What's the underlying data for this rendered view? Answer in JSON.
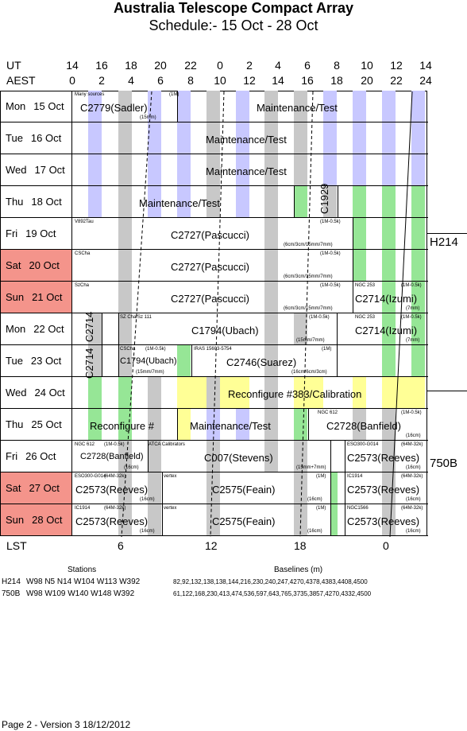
{
  "title": "Australia Telescope Compact Array",
  "subtitle": "Schedule:- 15 Oct - 28 Oct",
  "ut_label": "UT",
  "aest_label": "AEST",
  "ut_ticks": [
    "14",
    "16",
    "18",
    "20",
    "22",
    "0",
    "2",
    "4",
    "6",
    "8",
    "10",
    "12",
    "14"
  ],
  "aest_ticks": [
    "0",
    "2",
    "4",
    "6",
    "8",
    "10",
    "12",
    "14",
    "16",
    "18",
    "20",
    "22",
    "24"
  ],
  "lst_label": "LST",
  "lst_ticks": [
    "6",
    "12",
    "18",
    "0"
  ],
  "days": [
    {
      "name": "Mon",
      "date": "15 Oct",
      "weekend": false
    },
    {
      "name": "Tue",
      "date": "16 Oct",
      "weekend": false
    },
    {
      "name": "Wed",
      "date": "17 Oct",
      "weekend": false
    },
    {
      "name": "Thu",
      "date": "18 Oct",
      "weekend": false
    },
    {
      "name": "Fri",
      "date": "19 Oct",
      "weekend": false
    },
    {
      "name": "Sat",
      "date": "20 Oct",
      "weekend": true
    },
    {
      "name": "Sun",
      "date": "21 Oct",
      "weekend": true
    },
    {
      "name": "Mon",
      "date": "22 Oct",
      "weekend": false
    },
    {
      "name": "Tue",
      "date": "23 Oct",
      "weekend": false
    },
    {
      "name": "Wed",
      "date": "24 Oct",
      "weekend": false
    },
    {
      "name": "Thu",
      "date": "25 Oct",
      "weekend": false
    },
    {
      "name": "Fri",
      "date": "26 Oct",
      "weekend": false
    },
    {
      "name": "Sat",
      "date": "27 Oct",
      "weekend": true
    },
    {
      "name": "Sun",
      "date": "28 Oct",
      "weekend": true
    }
  ],
  "configs": [
    "H214",
    "750B"
  ],
  "projects": {
    "r0": {
      "sources": "Many sources",
      "code": "C2779(Sadler)",
      "band": "(1M)",
      "wave": "(15mm)",
      "main": "Maintenance/Test"
    },
    "r1": {
      "main": "Maintenance/Test"
    },
    "r2": {
      "main": "Maintenance/Test"
    },
    "r3": {
      "main": "Maintenance/Test",
      "side": "C1929"
    },
    "r4": {
      "src": "V892Tau",
      "code": "C2727(Pascucci)",
      "band": "(1M-0.5k)",
      "wave": "(6cm/3cm/15mm/7mm)"
    },
    "r5": {
      "src": "CSCha",
      "code": "C2727(Pascucci)",
      "band": "(1M-0.5k)",
      "wave": "(6cm/3cm/15mm/7mm)"
    },
    "r6": {
      "src": "SzCha",
      "code": "C2727(Pascucci)",
      "band": "(1M-0.5k)",
      "wave": "(6cm/3cm/15mm/7mm)",
      "src2": "NGC 253",
      "code2": "C2714(Izumi)",
      "band2": "(1M-0.5k)",
      "wave2": "(7mm)"
    },
    "r7": {
      "vert": "C2714",
      "src": "SZ Cha/Sz 111",
      "code": "C1794(Ubach)",
      "band": "(1M-0.5k)",
      "wave": "(15mm/7mm)",
      "src2": "NGC 253",
      "code2": "C2714(Izumi)",
      "band2": "(1M-0.5k)",
      "wave2": "(7mm)"
    },
    "r8": {
      "vert": "C2714",
      "src": "CSCha",
      "code": "C1794(Ubach)",
      "band": "(1M-0.5k)",
      "wave": "(15mm/7mm)",
      "src2": "IRAS 15603-5754",
      "code2": "C2746(Suarez)",
      "band2": "(1M)",
      "wave2": "(16cm/6cm/3cm)"
    },
    "r9": {
      "main": "Reconfigure #383/Calibration"
    },
    "r10": {
      "code": "Reconfigure #",
      "main": "Maintenance/Test",
      "src2": "NGC 612",
      "code2": "C2728(Banfield)",
      "band2": "(1M-0.5k)",
      "wave2": "(16cm)"
    },
    "r11": {
      "src": "NGC 612",
      "band": "(1M-0.5k)",
      "code": "C2728(Banfield)",
      "wave": "(16cm)",
      "src2": "ATCA Calibrators",
      "code2": "C007(Stevens)",
      "wave2": "(15mm+7mm)",
      "src3": "ESO300-G014",
      "band3": "(64M-32k)",
      "code3": "C2573(Reeves)",
      "wave3": "(16cm)"
    },
    "r12": {
      "src": "ESO300-G014",
      "band": "(64M-32k)",
      "code": "C2573(Reeves)",
      "wave": "(16cm)",
      "src2": "vertex",
      "code2": "C2575(Feain)",
      "band2": "(1M)",
      "wave2": "(16cm)",
      "src3": "IC1914",
      "band3": "(64M-32k)",
      "code3": "C2573(Reeves)",
      "wave3": "(16cm)"
    },
    "r13": {
      "src": "IC1914",
      "band": "(64M-32k)",
      "code": "C2573(Reeves)",
      "wave": "(16cm)",
      "src2": "vertex",
      "code2": "C2575(Feain)",
      "band2": "(1M)",
      "wave2": "(16cm)",
      "src3": "NGC1566",
      "band3": "(64M-32k)",
      "code3": "C2573(Reeves)",
      "wave3": "(16cm)"
    }
  },
  "stations_header": "Stations",
  "baselines_header": "Baselines (m)",
  "arrays": [
    {
      "name": "H214",
      "stations": "W98 N5 N14 W104 W113 W392",
      "baselines": "82,92,132,138,138,144,216,230,240,247,4270,4378,4383,4408,4500"
    },
    {
      "name": "750B",
      "stations": "W98 W109 W140 W148 W392",
      "baselines": "61,122,168,230,413,474,536,597,643,765,3735,3857,4270,4332,4500"
    }
  ],
  "footer": "Page 2 - Version 3  18/12/2012",
  "colors": {
    "blue": "#c8c8ff",
    "gray": "#c8c8c8",
    "green": "#96e696",
    "yellow": "#ffff96",
    "weekend": "#f4948b"
  }
}
